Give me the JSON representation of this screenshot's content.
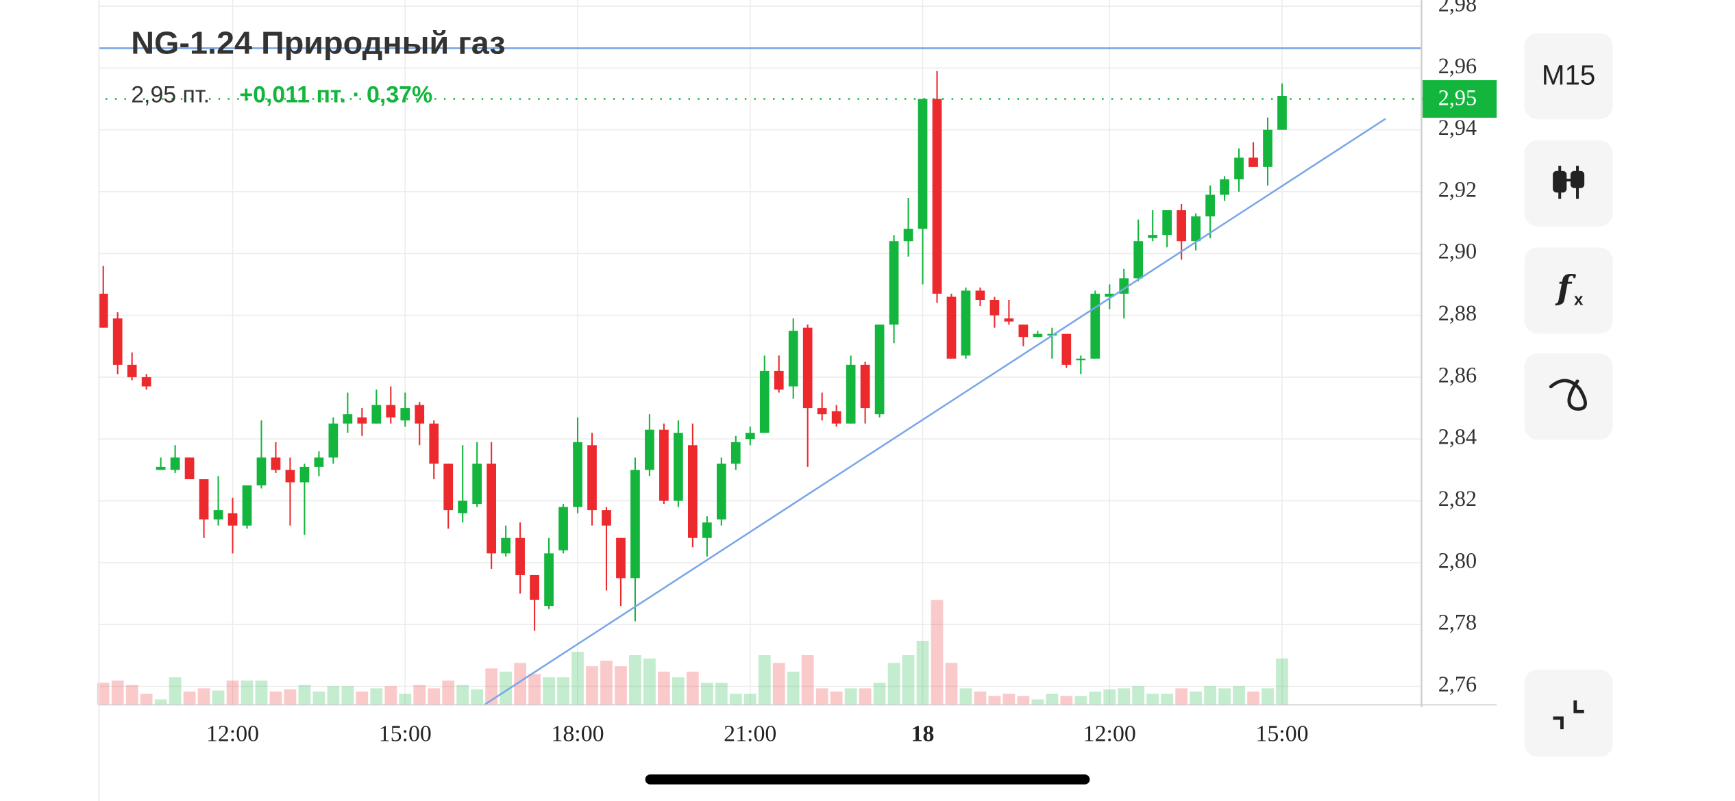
{
  "chart_data": {
    "type": "candlestick",
    "title": "NG-1.24 Природный газ",
    "price": "2,95 пт.",
    "change": "+0,011 пт. · 0,37%",
    "last_price": {
      "value": 2.95,
      "label": "2,95"
    },
    "up_color": "#13b53d",
    "down_color": "#ec2a2e",
    "grid": true,
    "xlim": [
      -0.3,
      91.7
    ],
    "ylim": [
      2.754,
      2.982
    ],
    "volume_lim": [
      0,
      100
    ],
    "yticks": [
      {
        "value": 2.76,
        "label": "2,76"
      },
      {
        "value": 2.78,
        "label": "2,78"
      },
      {
        "value": 2.8,
        "label": "2,80"
      },
      {
        "value": 2.82,
        "label": "2,82"
      },
      {
        "value": 2.84,
        "label": "2,84"
      },
      {
        "value": 2.86,
        "label": "2,86"
      },
      {
        "value": 2.88,
        "label": "2,88"
      },
      {
        "value": 2.9,
        "label": "2,90"
      },
      {
        "value": 2.92,
        "label": "2,92"
      },
      {
        "value": 2.94,
        "label": "2,94"
      },
      {
        "value": 2.96,
        "label": "2,96"
      },
      {
        "value": 2.98,
        "label": "2,98"
      }
    ],
    "xticks": [
      {
        "value": 9,
        "label": "12:00"
      },
      {
        "value": 21,
        "label": "15:00"
      },
      {
        "value": 33,
        "label": "18:00"
      },
      {
        "value": 45,
        "label": "21:00"
      },
      {
        "value": 57,
        "label": "18",
        "bold": true
      },
      {
        "value": 70,
        "label": "12:00"
      },
      {
        "value": 82,
        "label": "15:00"
      }
    ],
    "open": [
      2.887,
      2.879,
      2.864,
      2.86,
      2.83,
      2.83,
      2.834,
      2.827,
      2.814,
      2.816,
      2.812,
      2.825,
      2.834,
      2.83,
      2.826,
      2.831,
      2.834,
      2.845,
      2.847,
      2.845,
      2.851,
      2.846,
      2.851,
      2.845,
      2.832,
      2.816,
      2.819,
      2.832,
      2.803,
      2.808,
      2.796,
      2.786,
      2.804,
      2.818,
      2.838,
      2.817,
      2.808,
      2.795,
      2.83,
      2.843,
      2.82,
      2.838,
      2.808,
      2.814,
      2.832,
      2.84,
      2.842,
      2.862,
      2.857,
      2.876,
      2.85,
      2.849,
      2.845,
      2.864,
      2.848,
      2.877,
      2.904,
      2.908,
      2.95,
      2.886,
      2.867,
      2.888,
      2.885,
      2.879,
      2.877,
      2.873,
      2.874,
      2.874,
      2.866,
      2.866,
      2.886,
      2.887,
      2.892,
      2.905,
      2.906,
      2.914,
      2.904,
      2.912,
      2.919,
      2.924,
      2.931,
      2.928,
      2.94
    ],
    "high": [
      2.896,
      2.881,
      2.868,
      2.861,
      2.834,
      2.838,
      2.834,
      2.827,
      2.828,
      2.821,
      2.825,
      2.846,
      2.839,
      2.834,
      2.832,
      2.836,
      2.847,
      2.855,
      2.85,
      2.856,
      2.857,
      2.855,
      2.852,
      2.846,
      2.832,
      2.838,
      2.839,
      2.839,
      2.812,
      2.813,
      2.796,
      2.808,
      2.819,
      2.847,
      2.842,
      2.818,
      2.808,
      2.834,
      2.848,
      2.845,
      2.846,
      2.845,
      2.815,
      2.834,
      2.841,
      2.844,
      2.867,
      2.867,
      2.879,
      2.877,
      2.855,
      2.851,
      2.867,
      2.865,
      2.877,
      2.906,
      2.918,
      2.95,
      2.959,
      2.887,
      2.889,
      2.889,
      2.886,
      2.885,
      2.877,
      2.875,
      2.876,
      2.874,
      2.867,
      2.888,
      2.89,
      2.895,
      2.911,
      2.914,
      2.914,
      2.916,
      2.913,
      2.922,
      2.925,
      2.934,
      2.936,
      2.944,
      2.955
    ],
    "low": [
      2.876,
      2.861,
      2.859,
      2.856,
      2.83,
      2.829,
      2.827,
      2.808,
      2.812,
      2.803,
      2.811,
      2.824,
      2.829,
      2.812,
      2.809,
      2.828,
      2.832,
      2.842,
      2.841,
      2.845,
      2.845,
      2.844,
      2.838,
      2.827,
      2.811,
      2.813,
      2.818,
      2.798,
      2.802,
      2.79,
      2.778,
      2.785,
      2.803,
      2.816,
      2.812,
      2.791,
      2.786,
      2.781,
      2.828,
      2.819,
      2.818,
      2.805,
      2.802,
      2.812,
      2.83,
      2.838,
      2.842,
      2.855,
      2.853,
      2.831,
      2.846,
      2.844,
      2.845,
      2.845,
      2.847,
      2.871,
      2.899,
      2.89,
      2.884,
      2.866,
      2.866,
      2.883,
      2.876,
      2.877,
      2.87,
      2.873,
      2.866,
      2.863,
      2.861,
      2.866,
      2.882,
      2.879,
      2.891,
      2.904,
      2.902,
      2.898,
      2.901,
      2.905,
      2.917,
      2.92,
      2.928,
      2.922,
      2.94
    ],
    "close": [
      2.876,
      2.864,
      2.86,
      2.857,
      2.831,
      2.834,
      2.827,
      2.814,
      2.817,
      2.812,
      2.825,
      2.834,
      2.83,
      2.826,
      2.831,
      2.834,
      2.845,
      2.848,
      2.845,
      2.851,
      2.847,
      2.85,
      2.845,
      2.832,
      2.817,
      2.82,
      2.832,
      2.803,
      2.808,
      2.796,
      2.788,
      2.803,
      2.818,
      2.839,
      2.817,
      2.812,
      2.795,
      2.83,
      2.843,
      2.82,
      2.842,
      2.808,
      2.813,
      2.832,
      2.839,
      2.842,
      2.862,
      2.856,
      2.875,
      2.85,
      2.848,
      2.845,
      2.864,
      2.85,
      2.877,
      2.904,
      2.908,
      2.95,
      2.887,
      2.866,
      2.888,
      2.885,
      2.88,
      2.878,
      2.873,
      2.874,
      2.874,
      2.864,
      2.866,
      2.887,
      2.887,
      2.892,
      2.904,
      2.906,
      2.914,
      2.904,
      2.912,
      2.919,
      2.924,
      2.931,
      2.928,
      2.94,
      2.951
    ],
    "volume": [
      20,
      22,
      18,
      10,
      5,
      25,
      12,
      15,
      13,
      22,
      22,
      22,
      12,
      14,
      18,
      12,
      17,
      17,
      12,
      15,
      17,
      10,
      18,
      15,
      22,
      18,
      14,
      33,
      30,
      38,
      28,
      25,
      25,
      48,
      35,
      40,
      35,
      45,
      42,
      30,
      25,
      30,
      20,
      20,
      10,
      10,
      45,
      38,
      30,
      45,
      15,
      12,
      15,
      15,
      20,
      38,
      45,
      58,
      95,
      38,
      15,
      12,
      8,
      10,
      8,
      5,
      10,
      8,
      8,
      12,
      14,
      15,
      17,
      10,
      10,
      15,
      12,
      17,
      15,
      17,
      12,
      15,
      42
    ],
    "drawings": [
      {
        "type": "horizontal",
        "value": 2.9664,
        "color": "#7aa7e8"
      },
      {
        "type": "trend",
        "x": [
          26.5,
          89.2
        ],
        "y": [
          2.754,
          2.9436
        ],
        "color": "#7aa7e8"
      }
    ]
  },
  "toolbar": {
    "timeframe": "M15"
  }
}
